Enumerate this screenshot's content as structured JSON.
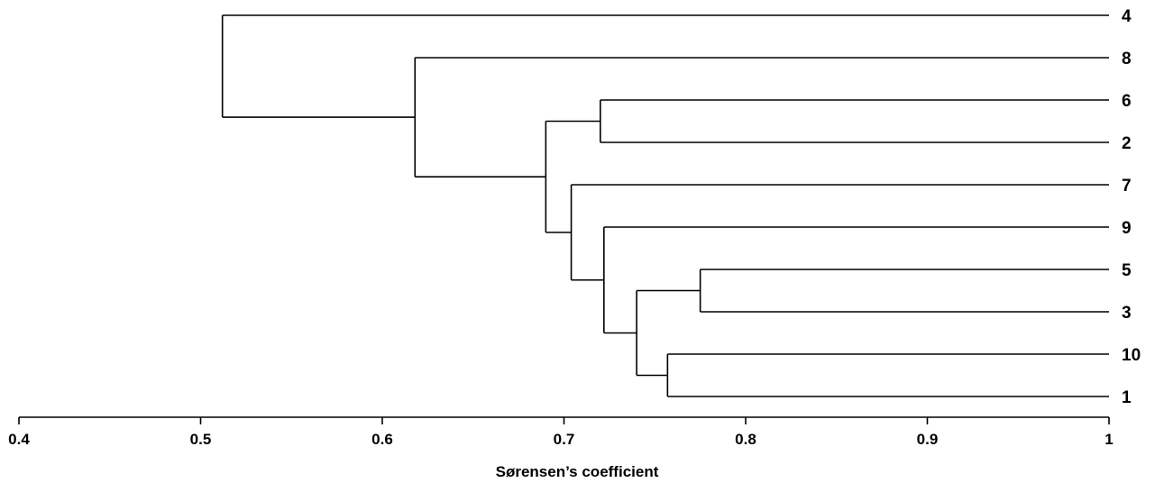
{
  "chart_data": {
    "type": "dendrogram",
    "xlabel": "Sørensen’s coefficient",
    "xlim": [
      0.4,
      1.0
    ],
    "xticks": [
      "0.4",
      "0.5",
      "0.6",
      "0.7",
      "0.8",
      "0.9",
      "1"
    ],
    "xtick_values": [
      0.4,
      0.5,
      0.6,
      0.7,
      0.8,
      0.9,
      1.0
    ],
    "leaves": [
      "4",
      "8",
      "6",
      "2",
      "7",
      "9",
      "5",
      "3",
      "10",
      "1"
    ],
    "merges": [
      {
        "id": "n1",
        "children": [
          "6",
          "2"
        ],
        "height": 0.72
      },
      {
        "id": "n2",
        "children": [
          "5",
          "3"
        ],
        "height": 0.775
      },
      {
        "id": "n3",
        "children": [
          "10",
          "1"
        ],
        "height": 0.757
      },
      {
        "id": "n4",
        "children": [
          "n2",
          "n3"
        ],
        "height": 0.74
      },
      {
        "id": "n5",
        "children": [
          "9",
          "n4"
        ],
        "height": 0.722
      },
      {
        "id": "n6",
        "children": [
          "7",
          "n5"
        ],
        "height": 0.704
      },
      {
        "id": "n7",
        "children": [
          "n1",
          "n6"
        ],
        "height": 0.69
      },
      {
        "id": "n8",
        "children": [
          "8",
          "n7"
        ],
        "height": 0.618
      },
      {
        "id": "n9",
        "children": [
          "4",
          "n8"
        ],
        "height": 0.512
      }
    ]
  }
}
